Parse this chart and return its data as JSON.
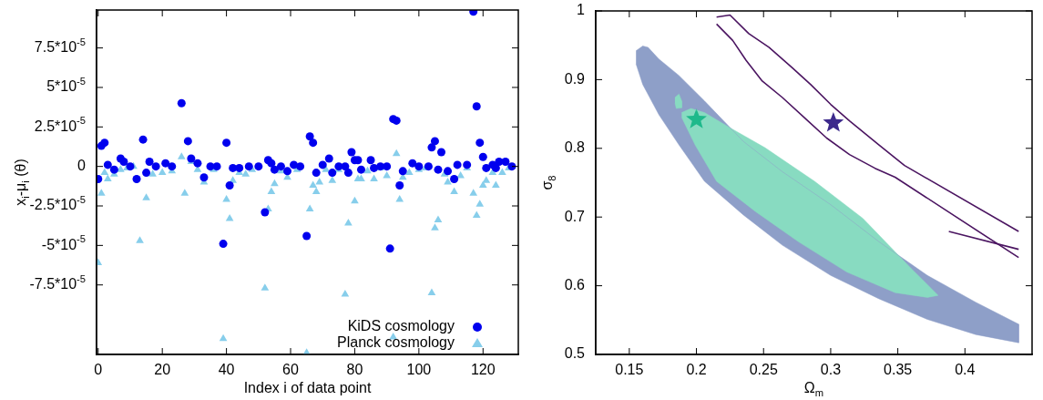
{
  "chart_data": [
    {
      "type": "scatter",
      "xlabel": "Index i of data point",
      "ylabel": "x$_{i}$-μ$_{i}$ (θ)",
      "xlim": [
        -0.5,
        131
      ],
      "ylim": [
        -0.000119,
        9.9e-05
      ],
      "xticks": [
        0,
        20,
        40,
        60,
        80,
        100,
        120
      ],
      "yticks": [
        {
          "value": 7.5e-05,
          "label": "7.5*10$^{-5}$"
        },
        {
          "value": 5e-05,
          "label": "5*10$^{-5}$"
        },
        {
          "value": 2.5e-05,
          "label": "2.5*10$^{-5}$"
        },
        0,
        {
          "value": -2.5e-05,
          "label": "-2.5*10$^{-5}$"
        },
        {
          "value": -5e-05,
          "label": "-5*10$^{-5}$"
        },
        {
          "value": -7.5e-05,
          "label": "-7.5*10$^{-5}$"
        }
      ],
      "legend": "bottom right",
      "series": [
        {
          "name": "KiDS cosmology",
          "color": "#0000ee",
          "marker": "circle",
          "x": [
            0,
            1,
            2,
            3,
            5,
            7,
            8,
            10,
            12,
            14,
            15,
            16,
            18,
            21,
            23,
            26,
            28,
            29,
            31,
            33,
            35,
            37,
            39,
            40,
            41,
            42,
            44,
            47,
            50,
            52,
            53,
            54,
            55,
            57,
            59,
            61,
            63,
            65,
            66,
            67,
            68,
            70,
            72,
            73,
            75,
            77,
            78,
            79,
            80,
            81,
            82,
            85,
            86,
            88,
            90,
            91,
            92,
            93,
            94,
            95,
            98,
            100,
            103,
            104,
            105,
            106,
            107,
            109,
            111,
            112,
            115,
            117,
            118,
            119,
            120,
            121,
            123,
            124,
            125,
            127,
            129
          ],
          "values": [
            -8e-06,
            1.3e-05,
            1.5e-05,
            1e-06,
            -2e-06,
            5e-06,
            3e-06,
            0,
            -8e-06,
            1.7e-05,
            -4e-06,
            3e-06,
            0,
            2e-06,
            0,
            4e-05,
            1.6e-05,
            5e-06,
            2e-06,
            -7e-06,
            0,
            0,
            -4.9e-05,
            1.5e-05,
            -1.2e-05,
            -1e-06,
            -1e-06,
            0,
            0,
            -2.9e-05,
            4e-06,
            2e-06,
            -2e-06,
            0,
            -3e-06,
            1e-06,
            0,
            -4.4e-05,
            1.9e-05,
            1.5e-05,
            -4e-06,
            1e-06,
            5e-06,
            -4e-06,
            0,
            0,
            -4e-06,
            9e-06,
            4e-06,
            4e-06,
            -2e-06,
            4e-06,
            -1e-06,
            0,
            0,
            -5.2e-05,
            3e-05,
            2.9e-05,
            -1.2e-05,
            -3e-06,
            2e-06,
            0,
            0,
            1.2e-05,
            1.6e-05,
            -2e-06,
            9e-06,
            -3e-06,
            -8e-06,
            1e-06,
            1e-06,
            9.8e-05,
            3.8e-05,
            1.5e-05,
            6e-06,
            -1e-06,
            1e-06,
            -1e-06,
            3e-06,
            3e-06,
            0
          ]
        },
        {
          "name": "Planck cosmology",
          "color": "#87ceeb",
          "marker": "triangle",
          "x": [
            0,
            1,
            2,
            3,
            5,
            7,
            9,
            11,
            13,
            15,
            17,
            20,
            23,
            26,
            27,
            29,
            31,
            33,
            36,
            39,
            40,
            41,
            42,
            44,
            46,
            48,
            52,
            53,
            54,
            55,
            57,
            59,
            62,
            65,
            66,
            67,
            68,
            69,
            71,
            73,
            75,
            77,
            78,
            80,
            81,
            82,
            84,
            86,
            88,
            90,
            92,
            93,
            94,
            95,
            97,
            100,
            102,
            104,
            105,
            106,
            108,
            109,
            111,
            113,
            115,
            117,
            118,
            119,
            120,
            121,
            123,
            124,
            126,
            128
          ],
          "values": [
            -6.1e-05,
            -1.7e-05,
            -4e-06,
            -8e-06,
            -5e-06,
            -2e-06,
            -1e-06,
            0,
            -4.7e-05,
            -2e-05,
            -5e-06,
            -4e-06,
            -3e-06,
            6e-06,
            -1.7e-05,
            3e-06,
            -2e-06,
            -1e-05,
            -2e-06,
            -0.000109,
            -2.1e-05,
            -3.3e-05,
            -9e-06,
            -4e-06,
            -5e-06,
            -2e-06,
            -7.7e-05,
            -2.7e-05,
            -1.6e-05,
            -1.1e-05,
            -3e-06,
            -7e-06,
            -2e-06,
            -0.000118,
            -2.7e-05,
            -1.2e-05,
            -1.6e-05,
            -1e-05,
            -2e-06,
            -9e-06,
            -2e-06,
            -8.1e-05,
            -3.6e-05,
            -2.2e-05,
            -8e-06,
            -8e-06,
            -3e-06,
            -8e-06,
            -1e-06,
            -6e-06,
            -0.000108,
            8e-06,
            -2.1e-05,
            -7e-06,
            -4e-06,
            -2e-06,
            -1e-06,
            -8e-05,
            -3.9e-05,
            -3.4e-05,
            -5e-06,
            -1e-05,
            -1.6e-05,
            -6e-06,
            -1e-06,
            -1.7e-05,
            -3.1e-05,
            -2.4e-05,
            -1.2e-05,
            -9e-06,
            -4e-06,
            -1.2e-05,
            -4e-06,
            -1e-06
          ]
        }
      ]
    },
    {
      "type": "area",
      "xlabel": "Ω$_{m}$",
      "ylabel": "σ$_{8}$",
      "xlim": [
        0.125,
        0.45
      ],
      "ylim": [
        0.5,
        1
      ],
      "xticks": [
        0.15,
        0.2,
        0.25,
        0.3,
        0.35,
        0.4
      ],
      "yticks": [
        0.5,
        0.6,
        0.7,
        0.8,
        0.9,
        1
      ],
      "series": [
        {
          "color": "#8e9fc8",
          "x": [
            0.155,
            0.16,
            0.164,
            0.172,
            0.187,
            0.206,
            0.235,
            0.264,
            0.3,
            0.336,
            0.372,
            0.408,
            0.44,
            0.44,
            0.408,
            0.372,
            0.336,
            0.3,
            0.264,
            0.235,
            0.206,
            0.187,
            0.172,
            0.16,
            0.155
          ],
          "values": [
            0.942,
            0.949,
            0.947,
            0.93,
            0.906,
            0.869,
            0.81,
            0.766,
            0.718,
            0.664,
            0.615,
            0.576,
            0.544,
            0.517,
            0.529,
            0.551,
            0.581,
            0.615,
            0.659,
            0.703,
            0.752,
            0.805,
            0.849,
            0.893,
            0.923
          ]
        },
        {
          "color": "#88dbc1",
          "x": [
            0.189,
            0.196,
            0.206,
            0.225,
            0.251,
            0.288,
            0.324,
            0.36,
            0.38,
            0.372,
            0.348,
            0.312,
            0.276,
            0.244,
            0.215,
            0.199,
            0.189
          ],
          "values": [
            0.852,
            0.858,
            0.852,
            0.83,
            0.801,
            0.752,
            0.698,
            0.625,
            0.586,
            0.583,
            0.59,
            0.62,
            0.664,
            0.708,
            0.752,
            0.805,
            0.845
          ]
        },
        {
          "color": "#88dbc1",
          "x": [
            0.184,
            0.187,
            0.189,
            0.189,
            0.185,
            0.184
          ],
          "values": [
            0.874,
            0.879,
            0.869,
            0.859,
            0.858,
            0.866
          ]
        },
        {
          "type": "line",
          "color": "#4b1561",
          "x": [
            0.215,
            0.225,
            0.239,
            0.254,
            0.271,
            0.285,
            0.3,
            0.314,
            0.336,
            0.355,
            0.44
          ],
          "values": [
            0.991,
            0.994,
            0.967,
            0.947,
            0.918,
            0.893,
            0.864,
            0.84,
            0.805,
            0.775,
            0.679
          ]
        },
        {
          "type": "line",
          "color": "#4b1561",
          "x": [
            0.215,
            0.227,
            0.237,
            0.249,
            0.264,
            0.283,
            0.297,
            0.314,
            0.333,
            0.348,
            0.44
          ],
          "values": [
            0.981,
            0.957,
            0.928,
            0.898,
            0.874,
            0.84,
            0.815,
            0.791,
            0.771,
            0.758,
            0.641
          ]
        },
        {
          "type": "line",
          "color": "#4b1561",
          "x": [
            0.388,
            0.44
          ],
          "values": [
            0.679,
            0.653
          ]
        },
        {
          "type": "scatter",
          "marker": "star",
          "color": "#1eb98b",
          "x": [
            0.2
          ],
          "values": [
            0.842
          ]
        },
        {
          "type": "scatter",
          "marker": "star",
          "color": "#3d2a8c",
          "x": [
            0.302
          ],
          "values": [
            0.837
          ]
        }
      ]
    }
  ]
}
